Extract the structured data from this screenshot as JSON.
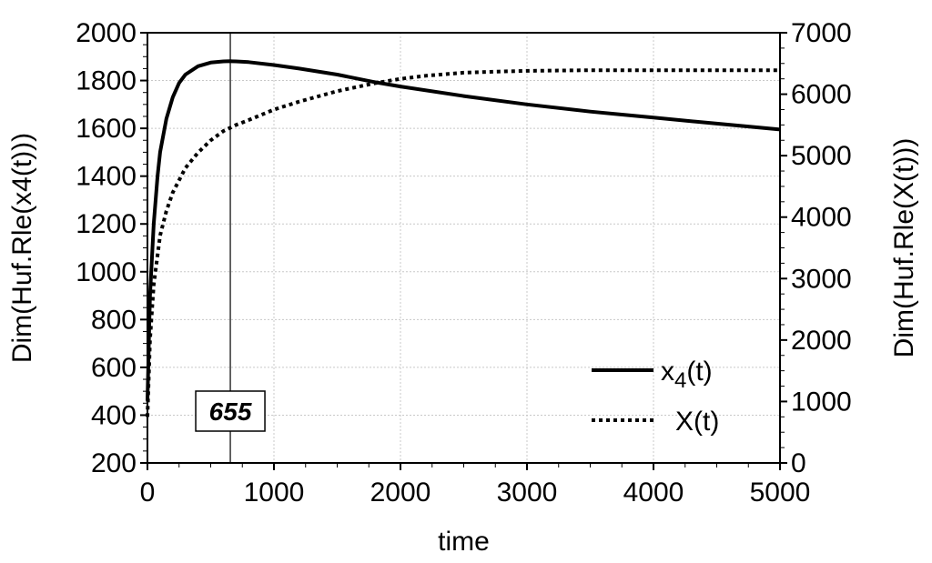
{
  "chart_data": {
    "type": "line",
    "xlabel": "time",
    "ylabel_left": "Dim(Huf.Rle(x4(t)))",
    "ylabel_right": "Dim(Huf.Rle(X(t)))",
    "xlim": [
      0,
      5000
    ],
    "ylim_left": [
      200,
      2000
    ],
    "ylim_right": [
      0,
      7000
    ],
    "x_ticks": [
      0,
      1000,
      2000,
      3000,
      4000,
      5000
    ],
    "y_left_ticks": [
      200,
      400,
      600,
      800,
      1000,
      1200,
      1400,
      1600,
      1800,
      2000
    ],
    "y_right_ticks": [
      0,
      1000,
      2000,
      3000,
      4000,
      5000,
      6000,
      7000
    ],
    "grid": true,
    "legend_position": "bottom-right",
    "vertical_marker": {
      "x": 655,
      "label": "655"
    },
    "series": [
      {
        "name_base": "x",
        "name_sub": "4",
        "name_suffix": "(t)",
        "axis": "left",
        "style": "solid",
        "x": [
          0,
          20,
          50,
          80,
          100,
          150,
          200,
          250,
          300,
          400,
          500,
          600,
          655,
          700,
          800,
          1000,
          1200,
          1500,
          1800,
          2000,
          2500,
          3000,
          3500,
          4000,
          4500,
          5000
        ],
        "y": [
          460,
          900,
          1200,
          1400,
          1500,
          1640,
          1730,
          1790,
          1825,
          1860,
          1875,
          1880,
          1881,
          1880,
          1877,
          1865,
          1850,
          1825,
          1793,
          1775,
          1735,
          1700,
          1670,
          1645,
          1620,
          1595
        ]
      },
      {
        "name": "X(t)",
        "axis": "right",
        "style": "dotted",
        "x": [
          0,
          20,
          50,
          100,
          150,
          200,
          300,
          400,
          500,
          600,
          700,
          800,
          1000,
          1200,
          1500,
          1800,
          2000,
          2200,
          2500,
          2800,
          3000,
          3500,
          4000,
          4500,
          5000
        ],
        "y": [
          750,
          2000,
          2900,
          3700,
          4100,
          4400,
          4800,
          5050,
          5250,
          5400,
          5500,
          5580,
          5750,
          5880,
          6050,
          6180,
          6250,
          6300,
          6350,
          6370,
          6380,
          6390,
          6390,
          6390,
          6390
        ]
      }
    ]
  }
}
